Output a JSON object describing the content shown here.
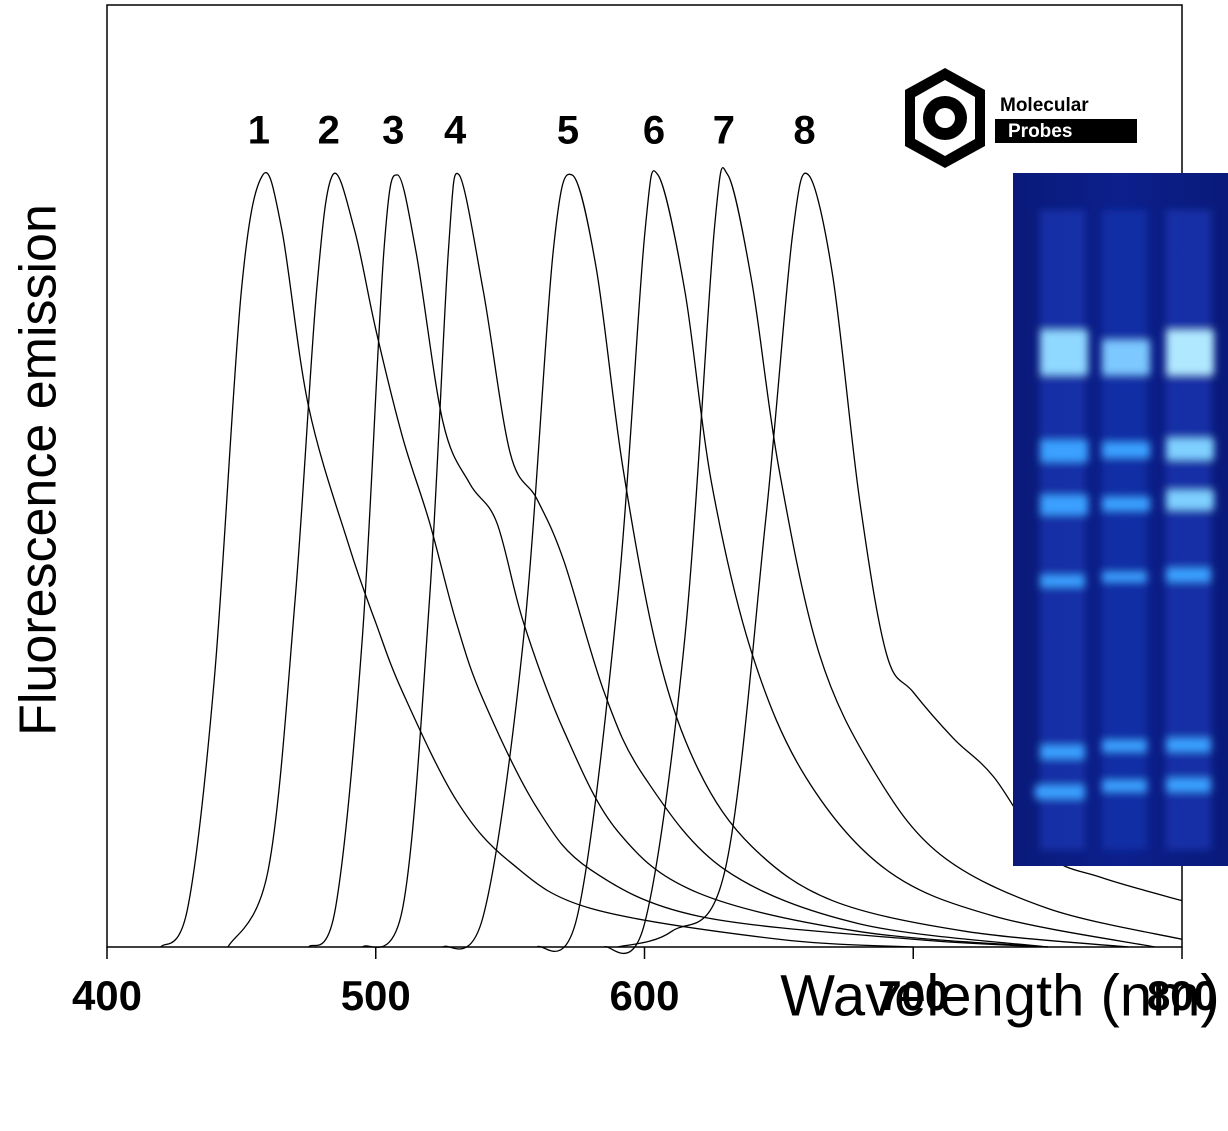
{
  "chart_data": {
    "type": "line",
    "x_label": "Wavelength (nm)",
    "y_label": "Fluorescence emission",
    "xlim": [
      400,
      800
    ],
    "xticks": [
      400,
      500,
      600,
      700,
      800
    ],
    "ylim": [
      0,
      1.22
    ],
    "series": [
      {
        "name": "1",
        "color": "#000000",
        "x": [
          420,
          430,
          440,
          450,
          458,
          465,
          475,
          490,
          500,
          510,
          530,
          550,
          580,
          650,
          700
        ],
        "values": [
          0,
          0.05,
          0.35,
          0.85,
          1.0,
          0.93,
          0.7,
          0.52,
          0.42,
          0.33,
          0.19,
          0.11,
          0.05,
          0.01,
          0
        ]
      },
      {
        "name": "2",
        "color": "#000000",
        "x": [
          445,
          460,
          470,
          478,
          484,
          492,
          500,
          510,
          520,
          530,
          540,
          560,
          580,
          620,
          700,
          750
        ],
        "values": [
          0,
          0.1,
          0.45,
          0.85,
          1.0,
          0.93,
          0.8,
          0.66,
          0.55,
          0.42,
          0.32,
          0.18,
          0.1,
          0.04,
          0.01,
          0
        ]
      },
      {
        "name": "3",
        "color": "#000000",
        "x": [
          475,
          485,
          495,
          503,
          508,
          515,
          525,
          535,
          545,
          555,
          570,
          590,
          620,
          680,
          750
        ],
        "values": [
          0,
          0.05,
          0.4,
          0.9,
          1.0,
          0.9,
          0.68,
          0.6,
          0.55,
          0.42,
          0.28,
          0.15,
          0.07,
          0.02,
          0
        ]
      },
      {
        "name": "4",
        "color": "#000000",
        "x": [
          495,
          510,
          520,
          527,
          531,
          540,
          550,
          560,
          570,
          585,
          600,
          630,
          680,
          750
        ],
        "values": [
          0,
          0.05,
          0.45,
          0.9,
          1.0,
          0.85,
          0.64,
          0.58,
          0.5,
          0.33,
          0.22,
          0.1,
          0.03,
          0
        ]
      },
      {
        "name": "5",
        "color": "#000000",
        "x": [
          525,
          540,
          555,
          566,
          573,
          582,
          592,
          605,
          620,
          640,
          670,
          720,
          780
        ],
        "values": [
          0,
          0.04,
          0.4,
          0.9,
          1.0,
          0.88,
          0.62,
          0.38,
          0.23,
          0.13,
          0.06,
          0.02,
          0
        ]
      },
      {
        "name": "6",
        "color": "#000000",
        "x": [
          560,
          575,
          590,
          600,
          605,
          615,
          625,
          640,
          660,
          690,
          730,
          790
        ],
        "values": [
          0,
          0.04,
          0.45,
          0.92,
          1.0,
          0.85,
          0.6,
          0.38,
          0.22,
          0.1,
          0.04,
          0
        ]
      },
      {
        "name": "7",
        "color": "#000000",
        "x": [
          585,
          600,
          615,
          626,
          631,
          640,
          650,
          665,
          685,
          710,
          750,
          800
        ],
        "values": [
          0,
          0.03,
          0.4,
          0.93,
          1.0,
          0.86,
          0.62,
          0.38,
          0.23,
          0.12,
          0.05,
          0.01
        ]
      },
      {
        "name": "8",
        "color": "#000000",
        "x": [
          590,
          610,
          630,
          645,
          655,
          661,
          670,
          680,
          690,
          700,
          715,
          730,
          750,
          770,
          800
        ],
        "values": [
          0,
          0.02,
          0.1,
          0.55,
          0.92,
          1.0,
          0.87,
          0.58,
          0.38,
          0.33,
          0.27,
          0.22,
          0.12,
          0.09,
          0.06
        ]
      }
    ],
    "logo": [
      "Molecular",
      "Probes"
    ]
  }
}
